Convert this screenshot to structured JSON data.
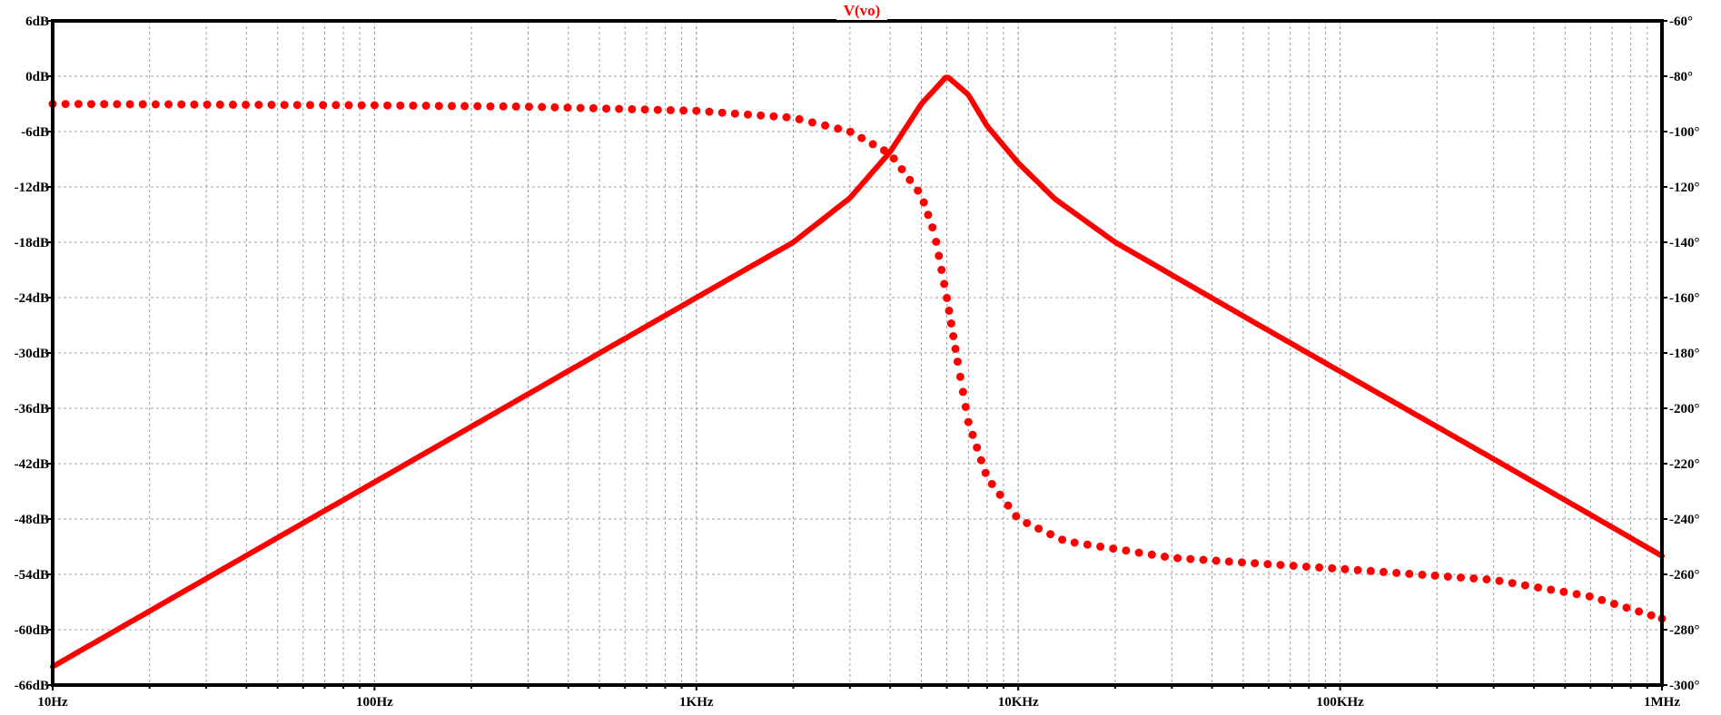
{
  "chart_data": {
    "type": "line",
    "title": "V(vo)",
    "xlabel": "",
    "ylabel": "",
    "y2label": "",
    "x_scale": "log",
    "xlim": [
      10,
      1000000
    ],
    "ylim": [
      -66,
      6
    ],
    "y2lim": [
      -300,
      -60
    ],
    "grid": true,
    "x_ticks": [
      10,
      100,
      1000,
      10000,
      100000,
      1000000
    ],
    "x_tick_labels": [
      "10Hz",
      "100Hz",
      "1KHz",
      "10KHz",
      "100KHz",
      "1MHz"
    ],
    "y_ticks": [
      6,
      0,
      -6,
      -12,
      -18,
      -24,
      -30,
      -36,
      -42,
      -48,
      -54,
      -60,
      -66
    ],
    "y_tick_labels": [
      "6dB",
      "0dB",
      "-6dB",
      "-12dB",
      "-18dB",
      "-24dB",
      "-30dB",
      "-36dB",
      "-42dB",
      "-48dB",
      "-54dB",
      "-60dB",
      "-66dB"
    ],
    "y2_ticks": [
      -60,
      -80,
      -100,
      -120,
      -140,
      -160,
      -180,
      -200,
      -220,
      -240,
      -260,
      -280,
      -300
    ],
    "y2_tick_labels": [
      "-60°",
      "-80°",
      "-100°",
      "-120°",
      "-140°",
      "-160°",
      "-180°",
      "-200°",
      "-220°",
      "-240°",
      "-260°",
      "-280°",
      "-300°"
    ],
    "series": [
      {
        "axis": "left",
        "style": "solid",
        "x": [
          10,
          100,
          1000,
          2000,
          3000,
          4000,
          5000,
          6000,
          7000,
          8000,
          10000,
          13000,
          20000,
          50000,
          100000,
          300000,
          1000000
        ],
        "values": [
          -64,
          -44,
          -24,
          -18,
          -13.2,
          -8.2,
          -3.0,
          0,
          -2.0,
          -5.4,
          -9.4,
          -13.3,
          -18,
          -26,
          -32,
          -41.5,
          -52
        ]
      },
      {
        "axis": "right",
        "style": "dotted",
        "x": [
          10,
          100,
          300,
          1000,
          2000,
          3000,
          4000,
          5000,
          5500,
          6000,
          6500,
          7000,
          8000,
          10000,
          14000,
          30000,
          100000,
          300000,
          600000,
          1000000
        ],
        "values": [
          -90,
          -90.5,
          -91,
          -92.5,
          -95,
          -100,
          -108,
          -123,
          -137,
          -160,
          -184,
          -205,
          -225,
          -240,
          -248,
          -254,
          -258,
          -262,
          -268,
          -276
        ]
      }
    ],
    "colors": {
      "series": "#ff0000",
      "title": "#ff0000",
      "grid": "#a0a0a0",
      "axis": "#000000"
    }
  }
}
